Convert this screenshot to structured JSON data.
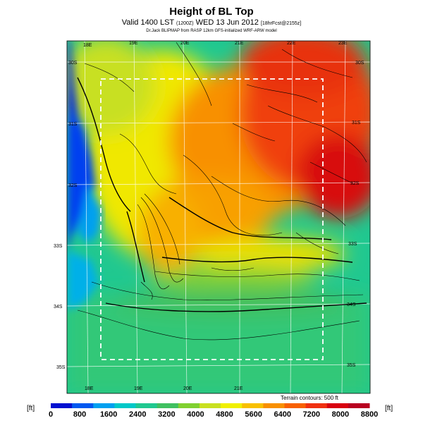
{
  "header": {
    "title": "Height of BL Top",
    "subtitle_main": "Valid 1400 LST",
    "subtitle_z": "(1200Z)",
    "subtitle_date": "WED 13 Jun 2012",
    "subtitle_run": "[18hrFcst@2155z]",
    "credit": "Dr.Jack BLIPMAP from RASP 12km GFS-initialized WRF-ARW model"
  },
  "map": {
    "top_lon_labels": [
      "18E",
      "19E",
      "20E",
      "21E",
      "22E",
      "23E"
    ],
    "bottom_lon_labels": [
      "18E",
      "19E",
      "20E",
      "21E"
    ],
    "left_lat_labels": [
      "30S",
      "31S",
      "32S",
      "33S",
      "34S",
      "35S"
    ],
    "right_lat_labels": [
      "30S",
      "31S",
      "32S",
      "33S",
      "34S",
      "35S"
    ],
    "terrain_note": "Terrain contours: 500 ft"
  },
  "colorbar": {
    "unit": "[ft]",
    "tick_labels": [
      "0",
      "800",
      "1600",
      "2400",
      "3200",
      "4000",
      "4800",
      "5600",
      "6400",
      "7200",
      "8000",
      "8800"
    ],
    "colors": [
      "#0010d0",
      "#0058f0",
      "#00a0f0",
      "#00c8c8",
      "#20c890",
      "#40c060",
      "#80d030",
      "#c8e020",
      "#f0f000",
      "#f8c000",
      "#f89000",
      "#f86000",
      "#f03010",
      "#d80010",
      "#b80020"
    ]
  }
}
